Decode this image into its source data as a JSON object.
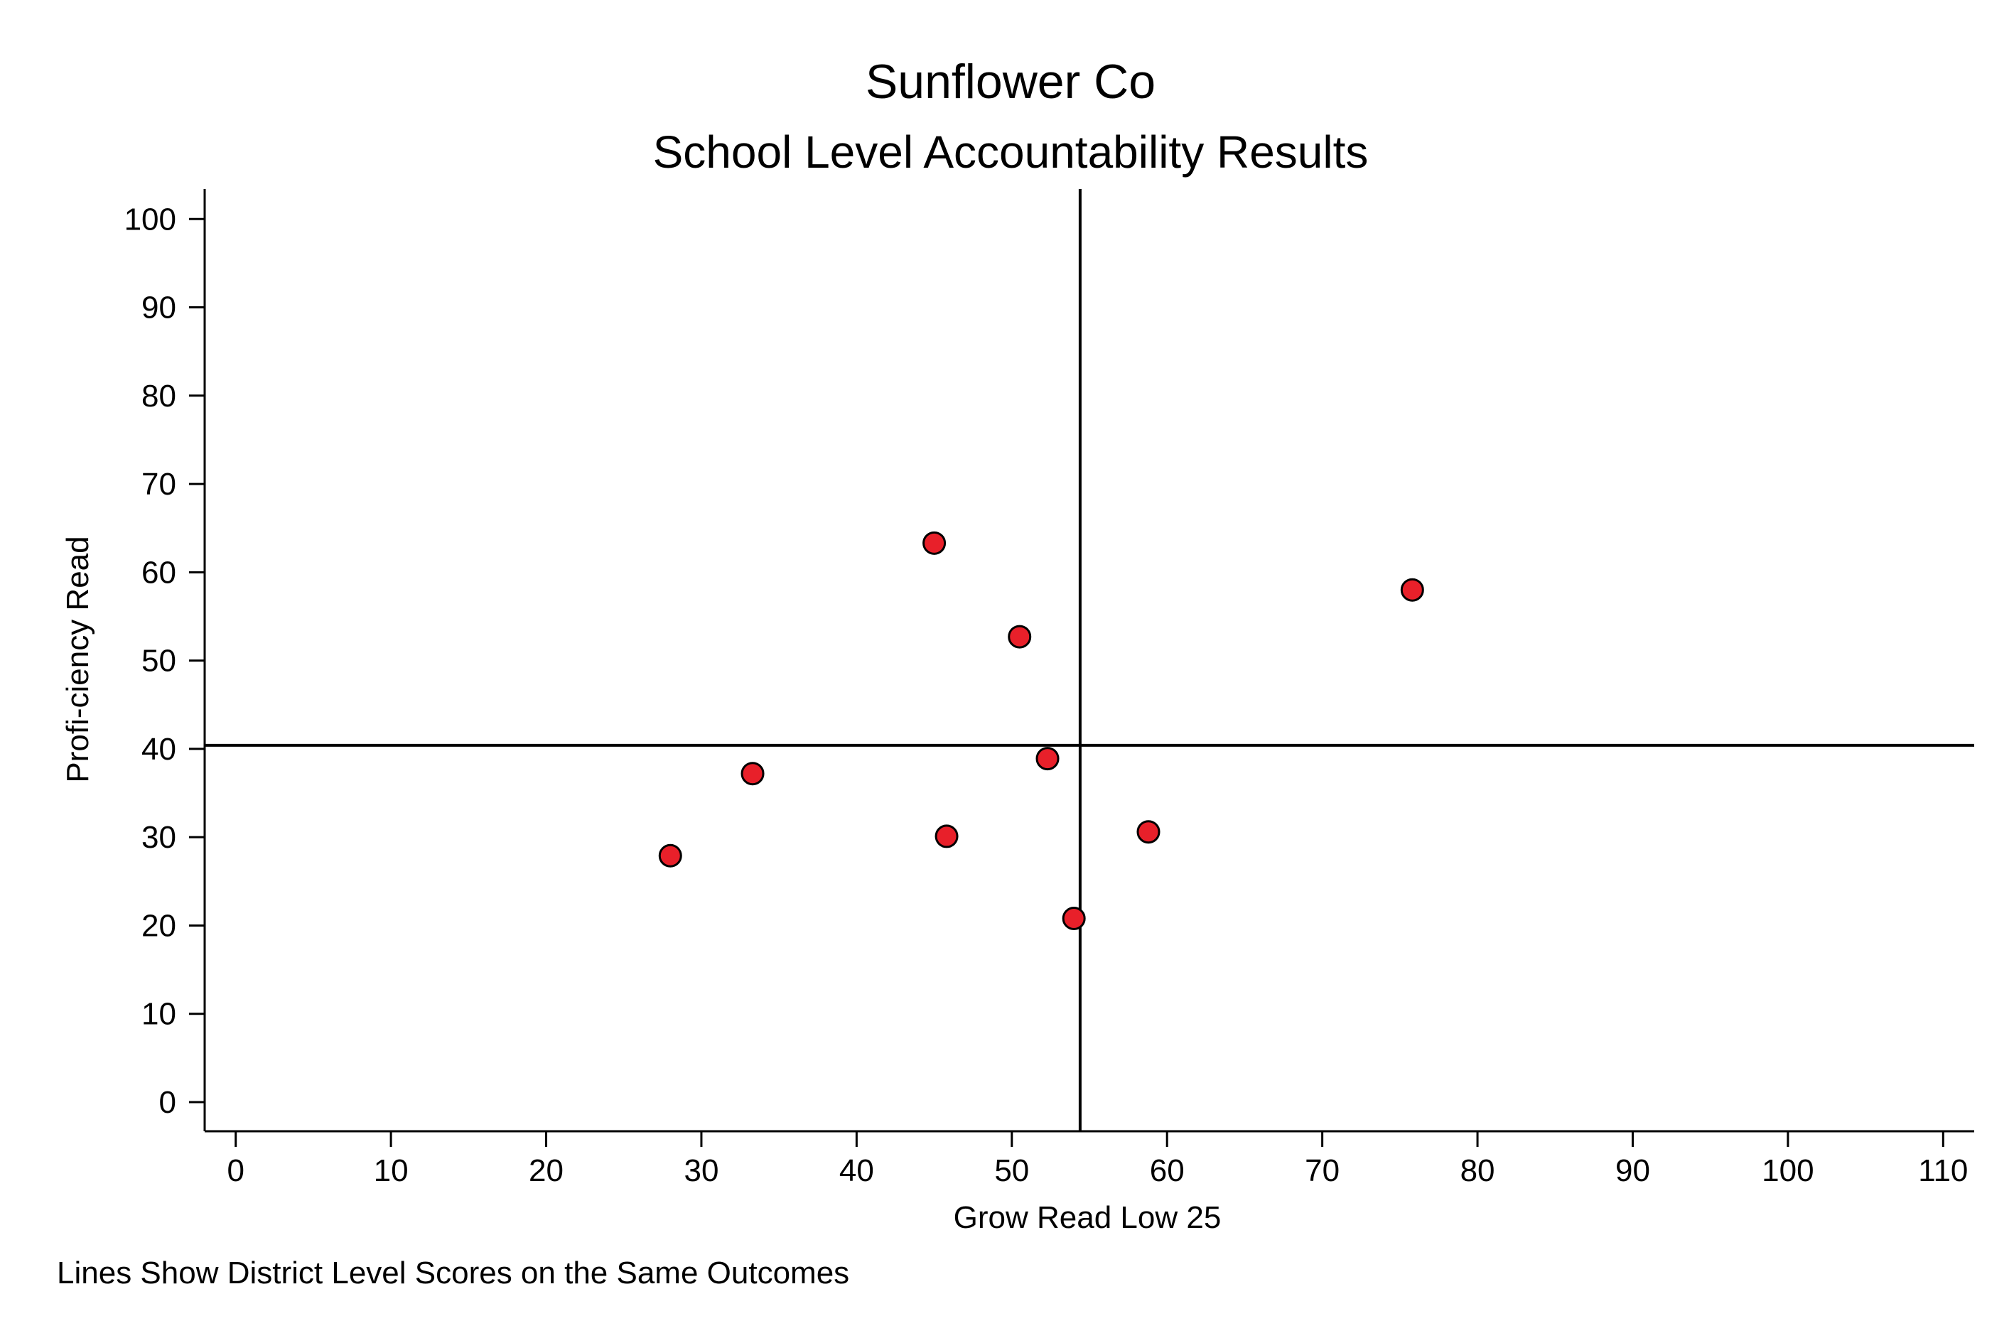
{
  "chart_data": {
    "type": "scatter",
    "title": "Sunflower Co",
    "subtitle": "School Level Accountability Results",
    "xlabel": "Grow Read Low 25",
    "ylabel": "Profi-ciency Read",
    "note": "Lines Show District Level Scores on the Same Outcomes",
    "xlim": [
      -2,
      112
    ],
    "ylim": [
      -3.3,
      103.4
    ],
    "x_ticks": [
      0,
      10,
      20,
      30,
      40,
      50,
      60,
      70,
      80,
      90,
      100,
      110
    ],
    "y_ticks": [
      0,
      10,
      20,
      30,
      40,
      50,
      60,
      70,
      80,
      90,
      100
    ],
    "grid": false,
    "marker_color": "#e8202a",
    "points": [
      {
        "x": 28.0,
        "y": 27.9
      },
      {
        "x": 33.3,
        "y": 37.2
      },
      {
        "x": 45.0,
        "y": 63.3
      },
      {
        "x": 45.8,
        "y": 30.1
      },
      {
        "x": 50.5,
        "y": 52.7
      },
      {
        "x": 52.3,
        "y": 38.9
      },
      {
        "x": 54.0,
        "y": 20.8
      },
      {
        "x": 58.8,
        "y": 30.6
      },
      {
        "x": 75.8,
        "y": 58.0
      }
    ],
    "reference_lines": {
      "x": 54.4,
      "y": 40.4
    }
  }
}
